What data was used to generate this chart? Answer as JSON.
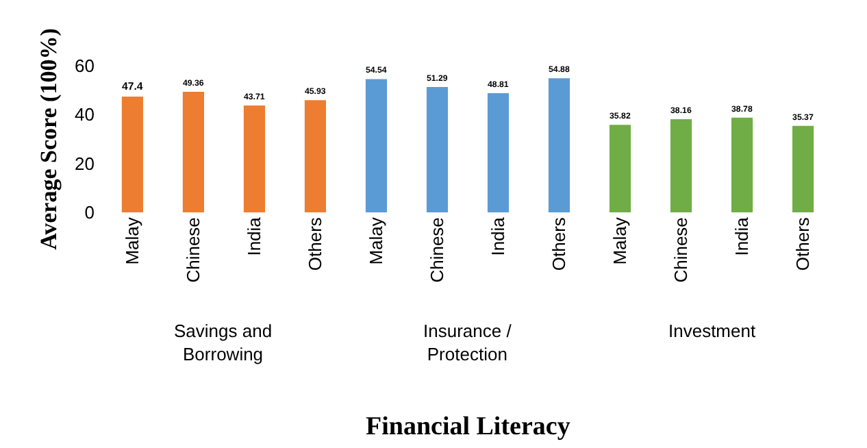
{
  "chart_data": {
    "type": "bar",
    "xlabel": "Financial Literacy",
    "ylabel": "Average Score (100%)",
    "categories": [
      "Malay",
      "Chinese",
      "India",
      "Others",
      "Malay",
      "Chinese",
      "India",
      "Others",
      "Malay",
      "Chinese",
      "India",
      "Others"
    ],
    "values": [
      47.4,
      49.36,
      43.71,
      45.93,
      54.54,
      51.29,
      48.81,
      54.88,
      35.82,
      38.16,
      38.78,
      35.37
    ],
    "colors": [
      "#ed7d31",
      "#ed7d31",
      "#ed7d31",
      "#ed7d31",
      "#5b9bd5",
      "#5b9bd5",
      "#5b9bd5",
      "#5b9bd5",
      "#70ad47",
      "#70ad47",
      "#70ad47",
      "#70ad47"
    ],
    "annotations": [
      "Savings and\nBorrowing",
      "Insurance /\nProtection",
      "Investment"
    ],
    "ylim": [
      0,
      60
    ],
    "yticks": [
      0,
      20,
      40,
      60
    ],
    "data_labels": true
  }
}
